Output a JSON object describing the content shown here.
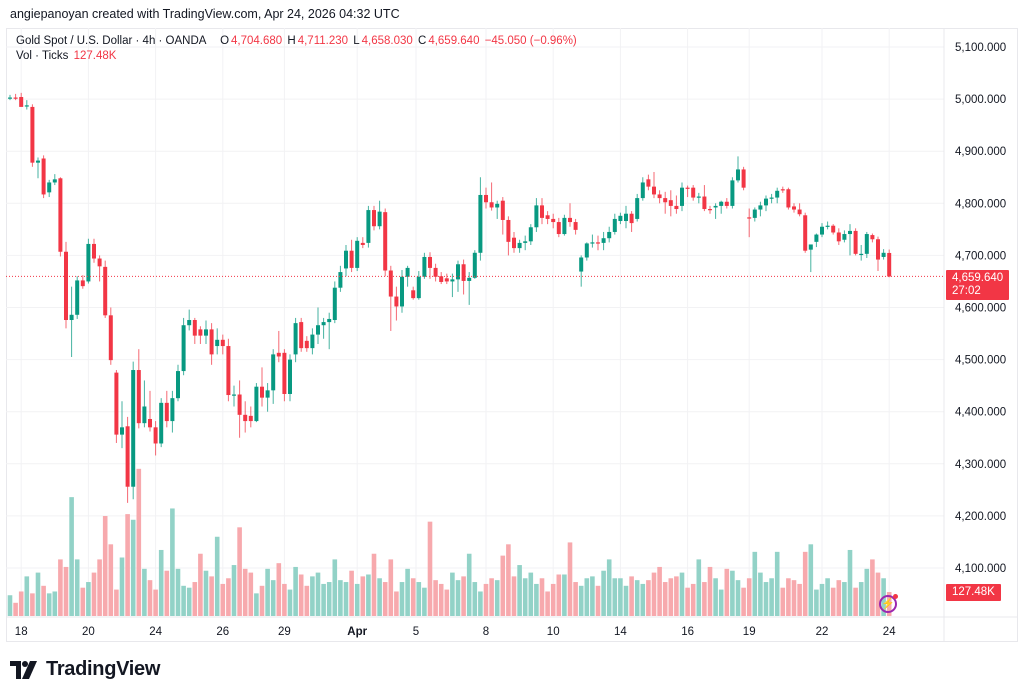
{
  "header": "angiepanoyan created with TradingView.com, Apr 24, 2026 04:32 UTC",
  "legend": {
    "symbol": "Gold Spot / U.S. Dollar · 4h · OANDA",
    "o_label": "O",
    "o": "4,704.680",
    "h_label": "H",
    "h": "4,711.230",
    "l_label": "L",
    "l": "4,658.030",
    "c_label": "C",
    "c": "4,659.640",
    "change": "−45.050 (−0.96%)",
    "vol_label": "Vol · Ticks",
    "vol": "127.48K"
  },
  "price_badge": {
    "price": "4,659.640",
    "countdown": "27:02"
  },
  "volume_badge": "127.48K",
  "price_axis": [
    "5,100.000",
    "5,000.000",
    "4,900.000",
    "4,800.000",
    "4,700.000",
    "4,600.000",
    "4,500.000",
    "4,400.000",
    "4,300.000",
    "4,200.000",
    "4,100.000"
  ],
  "time_axis": [
    "18",
    "20",
    "24",
    "26",
    "29",
    "Apr",
    "5",
    "8",
    "10",
    "14",
    "16",
    "19",
    "22",
    "24"
  ],
  "logo": "TradingView",
  "colors": {
    "up": "#089981",
    "down": "#f23645",
    "up_vol": "#92d2c7",
    "down_vol": "#f7a9ad",
    "last_price": "#f23645"
  },
  "chart_data": {
    "type": "candlestick",
    "interval": "4h",
    "last_price": 4659.64,
    "ylim": [
      4050,
      5150
    ],
    "candles_ohlc": [
      [
        5002,
        5008,
        4998,
        5003
      ],
      [
        5003,
        5010,
        4998,
        5002
      ],
      [
        5004,
        5012,
        4994,
        4985
      ],
      [
        4986,
        4998,
        4980,
        4988
      ],
      [
        4985,
        4990,
        4870,
        4878
      ],
      [
        4878,
        4888,
        4848,
        4882
      ],
      [
        4886,
        4892,
        4810,
        4817
      ],
      [
        4821,
        4845,
        4812,
        4840
      ],
      [
        4840,
        4856,
        4835,
        4846
      ],
      [
        4848,
        4850,
        4698,
        4707
      ],
      [
        4707,
        4726,
        4560,
        4576
      ],
      [
        4576,
        4640,
        4505,
        4586
      ],
      [
        4586,
        4660,
        4578,
        4652
      ],
      [
        4652,
        4662,
        4636,
        4641
      ],
      [
        4650,
        4732,
        4646,
        4722
      ],
      [
        4722,
        4732,
        4686,
        4694
      ],
      [
        4694,
        4700,
        4650,
        4679
      ],
      [
        4678,
        4690,
        4580,
        4585
      ],
      [
        4585,
        4600,
        4490,
        4499
      ],
      [
        4475,
        4480,
        4340,
        4356
      ],
      [
        4356,
        4420,
        4330,
        4370
      ],
      [
        4372,
        4390,
        4225,
        4256
      ],
      [
        4256,
        4496,
        4232,
        4480
      ],
      [
        4480,
        4520,
        4368,
        4378
      ],
      [
        4378,
        4460,
        4370,
        4410
      ],
      [
        4386,
        4440,
        4362,
        4370
      ],
      [
        4370,
        4382,
        4316,
        4339
      ],
      [
        4339,
        4426,
        4332,
        4417
      ],
      [
        4417,
        4440,
        4370,
        4382
      ],
      [
        4382,
        4440,
        4360,
        4426
      ],
      [
        4426,
        4490,
        4420,
        4478
      ],
      [
        4478,
        4580,
        4470,
        4566
      ],
      [
        4566,
        4596,
        4556,
        4576
      ],
      [
        4576,
        4580,
        4530,
        4546
      ],
      [
        4558,
        4564,
        4530,
        4546
      ],
      [
        4546,
        4575,
        4530,
        4558
      ],
      [
        4558,
        4570,
        4490,
        4510
      ],
      [
        4526,
        4560,
        4510,
        4538
      ],
      [
        4538,
        4548,
        4510,
        4526
      ],
      [
        4526,
        4540,
        4420,
        4432
      ],
      [
        4432,
        4450,
        4410,
        4433
      ],
      [
        4433,
        4460,
        4350,
        4394
      ],
      [
        4394,
        4420,
        4360,
        4382
      ],
      [
        4392,
        4410,
        4370,
        4382
      ],
      [
        4382,
        4455,
        4380,
        4448
      ],
      [
        4448,
        4485,
        4410,
        4427
      ],
      [
        4427,
        4455,
        4400,
        4441
      ],
      [
        4441,
        4520,
        4415,
        4510
      ],
      [
        4513,
        4555,
        4495,
        4506
      ],
      [
        4513,
        4520,
        4420,
        4434
      ],
      [
        4434,
        4510,
        4420,
        4500
      ],
      [
        4510,
        4580,
        4495,
        4570
      ],
      [
        4572,
        4580,
        4515,
        4522
      ],
      [
        4536,
        4545,
        4515,
        4522
      ],
      [
        4522,
        4560,
        4510,
        4548
      ],
      [
        4548,
        4600,
        4530,
        4566
      ],
      [
        4566,
        4580,
        4540,
        4572
      ],
      [
        4572,
        4590,
        4520,
        4578
      ],
      [
        4576,
        4650,
        4570,
        4638
      ],
      [
        4638,
        4680,
        4630,
        4668
      ],
      [
        4675,
        4720,
        4660,
        4709
      ],
      [
        4709,
        4730,
        4668,
        4676
      ],
      [
        4676,
        4735,
        4670,
        4728
      ],
      [
        4724,
        4735,
        4714,
        4720
      ],
      [
        4724,
        4795,
        4715,
        4787
      ],
      [
        4787,
        4795,
        4748,
        4756
      ],
      [
        4756,
        4805,
        4750,
        4784
      ],
      [
        4783,
        4790,
        4660,
        4671
      ],
      [
        4671,
        4680,
        4555,
        4621
      ],
      [
        4621,
        4640,
        4575,
        4602
      ],
      [
        4602,
        4672,
        4590,
        4659
      ],
      [
        4659,
        4680,
        4640,
        4676
      ],
      [
        4633,
        4640,
        4615,
        4618
      ],
      [
        4618,
        4670,
        4615,
        4659
      ],
      [
        4659,
        4705,
        4655,
        4697
      ],
      [
        4697,
        4706,
        4655,
        4676
      ],
      [
        4676,
        4684,
        4650,
        4659
      ],
      [
        4660,
        4668,
        4645,
        4649
      ],
      [
        4656,
        4665,
        4645,
        4650
      ],
      [
        4650,
        4665,
        4620,
        4654
      ],
      [
        4654,
        4690,
        4630,
        4683
      ],
      [
        4683,
        4692,
        4625,
        4651
      ],
      [
        4651,
        4668,
        4605,
        4657
      ],
      [
        4657,
        4710,
        4655,
        4705
      ],
      [
        4705,
        4850,
        4690,
        4816
      ],
      [
        4816,
        4830,
        4790,
        4802
      ],
      [
        4802,
        4840,
        4786,
        4792
      ],
      [
        4792,
        4805,
        4770,
        4799
      ],
      [
        4805,
        4812,
        4740,
        4768
      ],
      [
        4768,
        4775,
        4700,
        4726
      ],
      [
        4734,
        4745,
        4705,
        4714
      ],
      [
        4714,
        4730,
        4705,
        4724
      ],
      [
        4724,
        4738,
        4710,
        4727
      ],
      [
        4727,
        4760,
        4720,
        4754
      ],
      [
        4754,
        4810,
        4745,
        4796
      ],
      [
        4796,
        4810,
        4760,
        4772
      ],
      [
        4777,
        4785,
        4760,
        4770
      ],
      [
        4770,
        4780,
        4752,
        4764
      ],
      [
        4764,
        4772,
        4735,
        4741
      ],
      [
        4741,
        4778,
        4738,
        4772
      ],
      [
        4772,
        4800,
        4755,
        4764
      ],
      [
        4764,
        4770,
        4740,
        4749
      ],
      [
        4669,
        4700,
        4640,
        4696
      ],
      [
        4696,
        4725,
        4690,
        4723
      ],
      [
        4723,
        4740,
        4715,
        4725
      ],
      [
        4725,
        4738,
        4710,
        4724
      ],
      [
        4724,
        4745,
        4710,
        4733
      ],
      [
        4733,
        4755,
        4725,
        4745
      ],
      [
        4745,
        4780,
        4740,
        4770
      ],
      [
        4766,
        4782,
        4760,
        4776
      ],
      [
        4766,
        4795,
        4752,
        4780
      ],
      [
        4780,
        4785,
        4745,
        4762
      ],
      [
        4770,
        4818,
        4765,
        4810
      ],
      [
        4810,
        4850,
        4805,
        4840
      ],
      [
        4846,
        4855,
        4825,
        4832
      ],
      [
        4832,
        4860,
        4810,
        4817
      ],
      [
        4817,
        4825,
        4800,
        4810
      ],
      [
        4810,
        4822,
        4780,
        4802
      ],
      [
        4806,
        4825,
        4775,
        4795
      ],
      [
        4795,
        4815,
        4780,
        4789
      ],
      [
        4795,
        4840,
        4785,
        4830
      ],
      [
        4830,
        4834,
        4812,
        4828
      ],
      [
        4830,
        4835,
        4805,
        4811
      ],
      [
        4811,
        4820,
        4800,
        4813
      ],
      [
        4813,
        4835,
        4785,
        4789
      ],
      [
        4789,
        4795,
        4780,
        4788
      ],
      [
        4792,
        4800,
        4770,
        4795
      ],
      [
        4795,
        4805,
        4780,
        4803
      ],
      [
        4803,
        4810,
        4790,
        4795
      ],
      [
        4795,
        4850,
        4790,
        4844
      ],
      [
        4844,
        4890,
        4840,
        4865
      ],
      [
        4865,
        4870,
        4825,
        4830
      ],
      [
        4773,
        4790,
        4735,
        4772
      ],
      [
        4772,
        4792,
        4765,
        4788
      ],
      [
        4788,
        4803,
        4775,
        4796
      ],
      [
        4796,
        4815,
        4785,
        4809
      ],
      [
        4809,
        4818,
        4800,
        4811
      ],
      [
        4811,
        4830,
        4800,
        4824
      ],
      [
        4827,
        4832,
        4820,
        4826
      ],
      [
        4827,
        4830,
        4788,
        4792
      ],
      [
        4794,
        4800,
        4782,
        4788
      ],
      [
        4788,
        4800,
        4775,
        4779
      ],
      [
        4777,
        4782,
        4705,
        4709
      ],
      [
        4711,
        4716,
        4668,
        4721
      ],
      [
        4726,
        4742,
        4716,
        4740
      ],
      [
        4740,
        4762,
        4735,
        4755
      ],
      [
        4757,
        4765,
        4750,
        4757
      ],
      [
        4757,
        4760,
        4740,
        4744
      ],
      [
        4744,
        4752,
        4720,
        4727
      ],
      [
        4730,
        4748,
        4725,
        4741
      ],
      [
        4741,
        4760,
        4700,
        4747
      ],
      [
        4747,
        4752,
        4700,
        4703
      ],
      [
        4703,
        4720,
        4690,
        4703
      ],
      [
        4703,
        4745,
        4695,
        4741
      ],
      [
        4739,
        4742,
        4725,
        4731
      ],
      [
        4731,
        4736,
        4670,
        4692
      ],
      [
        4697,
        4712,
        4692,
        4705
      ],
      [
        4704.68,
        4711.23,
        4658.03,
        4659.64
      ]
    ],
    "volume_k": [
      110,
      70,
      130,
      210,
      120,
      230,
      160,
      120,
      130,
      300,
      260,
      630,
      300,
      150,
      180,
      230,
      300,
      530,
      380,
      140,
      310,
      540,
      510,
      780,
      250,
      190,
      140,
      350,
      240,
      570,
      250,
      160,
      150,
      180,
      330,
      240,
      210,
      420,
      170,
      200,
      270,
      470,
      250,
      230,
      120,
      160,
      250,
      190,
      280,
      170,
      140,
      260,
      220,
      160,
      210,
      230,
      170,
      180,
      300,
      190,
      180,
      240,
      170,
      210,
      220,
      330,
      200,
      180,
      300,
      130,
      180,
      250,
      200,
      180,
      150,
      500,
      190,
      170,
      140,
      230,
      190,
      210,
      330,
      180,
      130,
      170,
      200,
      190,
      320,
      380,
      210,
      270,
      200,
      230,
      170,
      200,
      130,
      170,
      220,
      220,
      390,
      180,
      160,
      200,
      210,
      160,
      240,
      300,
      200,
      200,
      160,
      210,
      190,
      170,
      190,
      230,
      260,
      180,
      200,
      210,
      230,
      150,
      170,
      300,
      180,
      260,
      200,
      140,
      250,
      240,
      190,
      150,
      200,
      340,
      230,
      180,
      200,
      340,
      150,
      200,
      190,
      170,
      340,
      380,
      140,
      170,
      200,
      150,
      190,
      180,
      350,
      150,
      180,
      250,
      300,
      230,
      200,
      127
    ]
  }
}
